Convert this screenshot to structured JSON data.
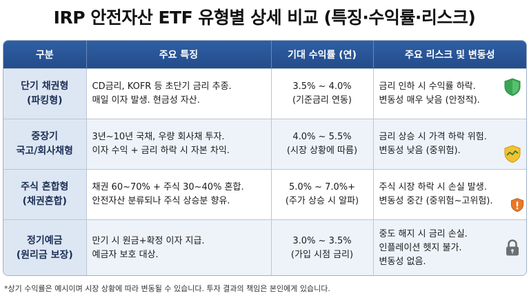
{
  "title": "IRP 안전자산 ETF 유형별 상세 비교 (특징·수익률·리스크)",
  "headers": [
    "구분",
    "주요 특징",
    "기대 수익률 (연)",
    "주요 리스크 및 변동성"
  ],
  "rows": [
    {
      "category": [
        "단기 채권형",
        "(파킹형)"
      ],
      "features": [
        "CD금리, KOFR 등 초단기 금리 추종.",
        "매일 이자 발생. 현금성 자산."
      ],
      "return": [
        "3.5% ~ 4.0%",
        "(기준금리 연동)"
      ],
      "risk": [
        "금리 인하 시 수익률 하락.",
        "변동성 매우 낮음 (안정적)."
      ],
      "icon": "green-shield-icon"
    },
    {
      "category": [
        "중장기",
        "국고/회사채형"
      ],
      "features": [
        "3년~10년 국채, 우량 회사채 투자.",
        "이자 수익 + 금리 하락 시 자본 차익."
      ],
      "return": [
        "4.0% ~ 5.5%",
        "(시장 상황에 따름)"
      ],
      "risk": [
        "금리 상승 시 가격 하락 위험.",
        "변동성 낮음 (중위험)."
      ],
      "icon": "yellow-shield-chart-icon"
    },
    {
      "category": [
        "주식 혼합형",
        "(채권혼합)"
      ],
      "features": [
        "채권 60~70% + 주식 30~40% 혼합.",
        "안전자산 분류되나 주식 상승분 향유."
      ],
      "return": [
        "5.0% ~ 7.0%+",
        "(주가 상승 시 알파)"
      ],
      "risk": [
        "주식 시장 하락 시 손실 발생.",
        "변동성 중간 (중위험~고위험)."
      ],
      "icon": "orange-warning-shield-icon"
    },
    {
      "category": [
        "정기예금",
        "(원리금 보장)"
      ],
      "features": [
        "만기 시 원금+확정 이자 지급.",
        "예금자 보호 대상."
      ],
      "return": [
        "3.0% ~ 3.5%",
        "(가입 시점 금리)"
      ],
      "risk": [
        "중도 해지 시 금리 손실.",
        "인플레이션 헷지 불가.",
        "변동성 없음."
      ],
      "icon": "gray-padlock-icon"
    }
  ],
  "footnote": "*상기 수익률은 예시이며 시장 상황에 따라 변동될 수 있습니다. 투자 결과의 책임은 본인에게 있습니다.",
  "colors": {
    "header_bg": "#2a579a",
    "category_bg": "#dde6f3",
    "shield_green": "#3aa655",
    "shield_yellow": "#f2c230",
    "warning_orange": "#e8782a",
    "lock_gray": "#6b6f75"
  }
}
